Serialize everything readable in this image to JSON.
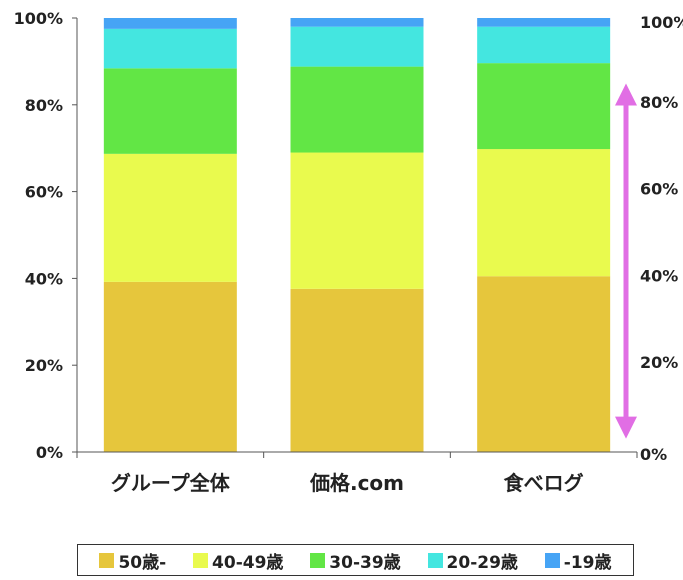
{
  "chart_data": {
    "type": "bar",
    "stacked": true,
    "normalized": true,
    "categories": [
      "グループ全体",
      "価格.com",
      "食べログ"
    ],
    "series": [
      {
        "name": "50歳-",
        "values": [
          39.2,
          37.6,
          40.5
        ],
        "color": "#E6C63C"
      },
      {
        "name": "40-49歳",
        "values": [
          29.5,
          31.4,
          29.3
        ],
        "color": "#E9FA4E"
      },
      {
        "name": "30-39歳",
        "values": [
          19.7,
          19.8,
          19.8
        ],
        "color": "#62E645"
      },
      {
        "name": "20-29歳",
        "values": [
          9.1,
          9.2,
          8.4
        ],
        "color": "#44E6E0"
      },
      {
        "name": "-19歳",
        "values": [
          2.5,
          2.0,
          2.0
        ],
        "color": "#46A4F5"
      }
    ],
    "ylim": [
      0,
      100
    ],
    "yticks": [
      "0%",
      "20%",
      "40%",
      "60%",
      "80%",
      "100%"
    ],
    "right_axis_ticks": [
      "0%",
      "20%",
      "40%",
      "60%",
      "80%",
      "100%"
    ],
    "annotation": {
      "type": "double-arrow",
      "color": "#E16EE4",
      "from": 4,
      "to": 84
    },
    "legend_position": "bottom"
  }
}
